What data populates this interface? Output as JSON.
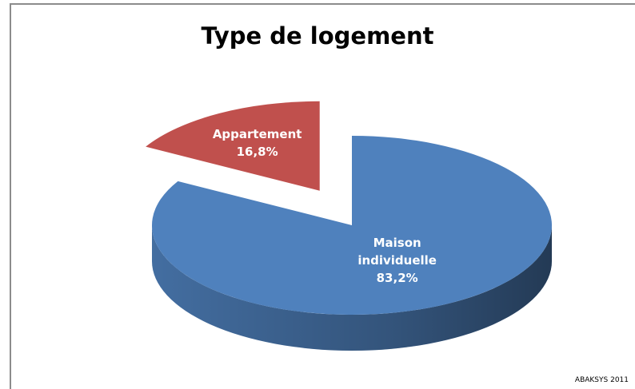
{
  "chart_data": {
    "type": "pie",
    "title": "Type de logement",
    "categories": [
      "Appartement",
      "Maison individuelle"
    ],
    "values": [
      16.8,
      83.2
    ],
    "value_labels": [
      "16,8%",
      "83,2%"
    ],
    "colors": [
      "#c0504d",
      "#4f81bd"
    ],
    "exploded": "Appartement",
    "annotation": "ABAKSYS 2011"
  }
}
